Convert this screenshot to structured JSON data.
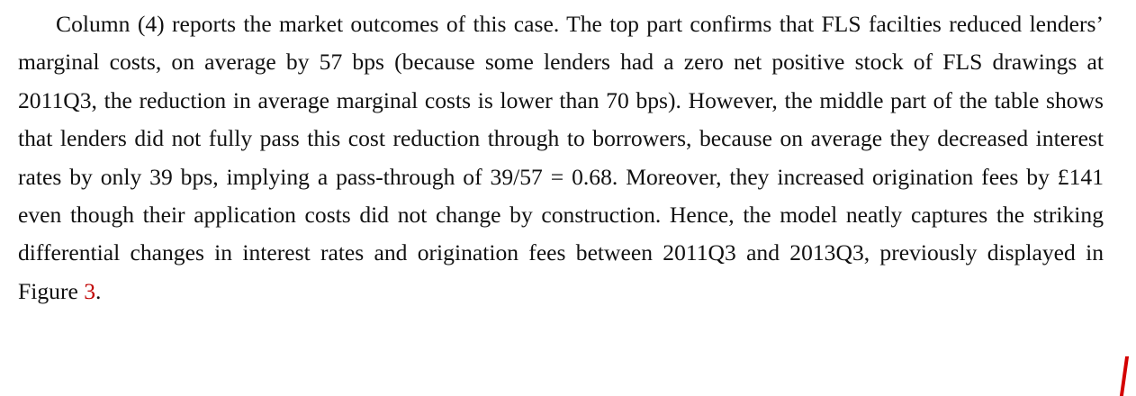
{
  "paragraph": {
    "text": "Column (4) reports the market outcomes of this case. The top part confirms that FLS facilties reduced lenders’ marginal costs, on average by 57 bps (because some lenders had a zero net positive stock of FLS drawings at 2011Q3, the reduction in average marginal costs is lower than 70 bps). However, the middle part of the table shows that lenders did not fully pass this cost reduction through to borrowers, because on average they decreased interest rates by only 39 bps, implying a pass-through of 39/57 = 0.68. Moreover, they increased origination fees by £141 even though their application costs did not change by construction. Hence, the model neatly captures the striking differential changes in interest rates and origination fees between 2011Q3 and 2013Q3, previously displayed in Figure ",
    "link": "3",
    "end": "."
  }
}
